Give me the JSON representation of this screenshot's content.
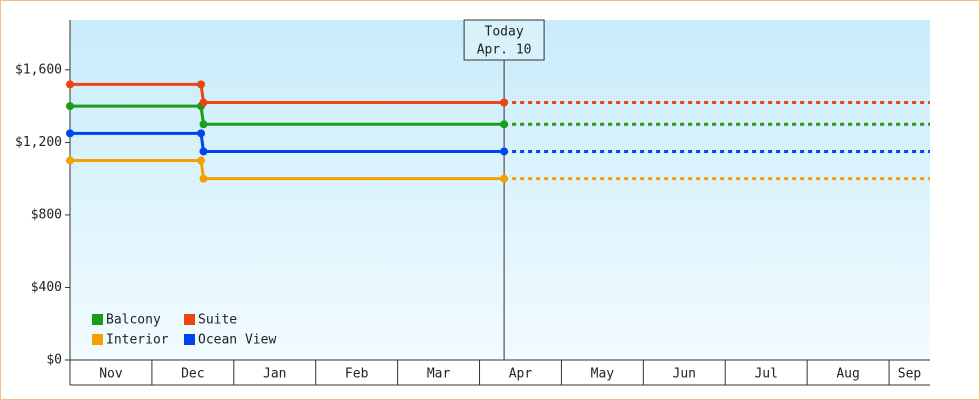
{
  "chart_data": {
    "type": "step-line",
    "categories": [
      "Nov",
      "Dec",
      "Jan",
      "Feb",
      "Mar",
      "Apr",
      "May",
      "Jun",
      "Jul",
      "Aug",
      "Sep"
    ],
    "xlim": [
      0,
      10.5
    ],
    "ylim": [
      0,
      1875
    ],
    "yticks": [
      {
        "value": 0,
        "label": "$0"
      },
      {
        "value": 400,
        "label": "$400"
      },
      {
        "value": 800,
        "label": "$800"
      },
      {
        "value": 1200,
        "label": "$1,200"
      },
      {
        "value": 1600,
        "label": "$1,600"
      }
    ],
    "annotation": {
      "x": 5.3,
      "label": "Today",
      "sublabel": "Apr. 10"
    },
    "legend": "lower left",
    "series": [
      {
        "name": "Balcony",
        "color": "#1a9e1a",
        "x": [
          0,
          1.6,
          1.63,
          5.3
        ],
        "values": [
          1400,
          1400,
          1300,
          1300
        ]
      },
      {
        "name": "Suite",
        "color": "#ee4411",
        "x": [
          0,
          1.6,
          1.63,
          5.3
        ],
        "values": [
          1520,
          1520,
          1420,
          1420
        ]
      },
      {
        "name": "Interior",
        "color": "#f5a000",
        "x": [
          0,
          1.6,
          1.63,
          5.3
        ],
        "values": [
          1100,
          1100,
          1000,
          1000
        ]
      },
      {
        "name": "Ocean View",
        "color": "#0044ee",
        "x": [
          0,
          1.6,
          1.63,
          5.3
        ],
        "values": [
          1250,
          1250,
          1150,
          1150
        ]
      }
    ]
  }
}
